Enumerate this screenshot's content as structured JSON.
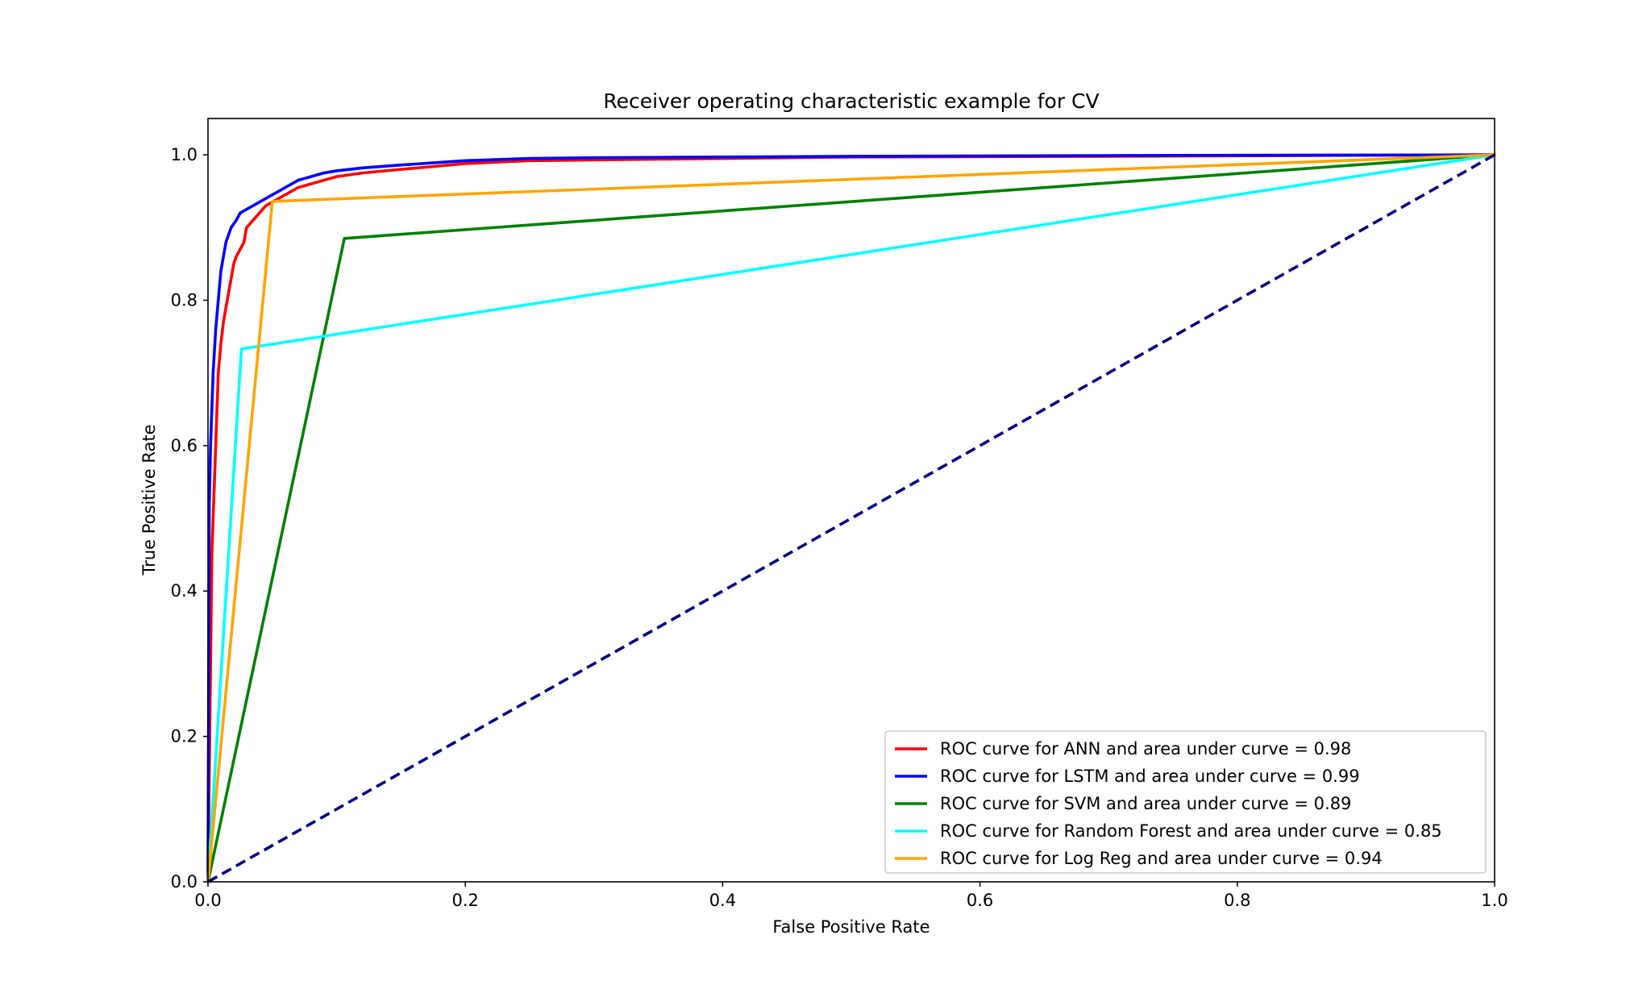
{
  "chart_data": {
    "type": "line",
    "title": "Receiver operating characteristic example for CV",
    "xlabel": "False Positive Rate",
    "ylabel": "True Positive Rate",
    "xlim": [
      0.0,
      1.0
    ],
    "ylim": [
      0.0,
      1.05
    ],
    "xticks": [
      "0.0",
      "0.2",
      "0.4",
      "0.6",
      "0.8",
      "1.0"
    ],
    "yticks": [
      "0.0",
      "0.2",
      "0.4",
      "0.6",
      "0.8",
      "1.0"
    ],
    "grid": false,
    "legend_position": "lower right",
    "series": [
      {
        "name": "ROC curve for ANN and area under curve = 0.98",
        "color": "#ff0000",
        "x": [
          0.0,
          0.003,
          0.006,
          0.008,
          0.01,
          0.012,
          0.015,
          0.018,
          0.02,
          0.022,
          0.025,
          0.028,
          0.03,
          0.035,
          0.04,
          0.045,
          0.05,
          0.06,
          0.07,
          0.08,
          0.09,
          0.1,
          0.12,
          0.15,
          0.2,
          0.25,
          0.3,
          0.4,
          0.5,
          0.7,
          1.0
        ],
        "y": [
          0.0,
          0.45,
          0.6,
          0.7,
          0.74,
          0.77,
          0.8,
          0.83,
          0.85,
          0.86,
          0.87,
          0.88,
          0.9,
          0.91,
          0.92,
          0.93,
          0.935,
          0.945,
          0.955,
          0.96,
          0.965,
          0.97,
          0.975,
          0.98,
          0.988,
          0.992,
          0.993,
          0.995,
          0.997,
          0.998,
          1.0
        ]
      },
      {
        "name": "ROC curve for LSTM and area under curve = 0.99",
        "color": "#0000ff",
        "x": [
          0.0,
          0.001,
          0.002,
          0.004,
          0.006,
          0.008,
          0.01,
          0.012,
          0.014,
          0.016,
          0.018,
          0.02,
          0.022,
          0.025,
          0.03,
          0.04,
          0.05,
          0.06,
          0.07,
          0.08,
          0.09,
          0.1,
          0.12,
          0.15,
          0.2,
          0.25,
          0.3,
          0.4,
          0.5,
          0.7,
          1.0
        ],
        "y": [
          0.0,
          0.52,
          0.6,
          0.7,
          0.76,
          0.8,
          0.84,
          0.86,
          0.88,
          0.89,
          0.9,
          0.905,
          0.91,
          0.92,
          0.925,
          0.935,
          0.945,
          0.955,
          0.965,
          0.97,
          0.975,
          0.978,
          0.982,
          0.986,
          0.992,
          0.995,
          0.996,
          0.997,
          0.998,
          0.999,
          1.0
        ]
      },
      {
        "name": "ROC curve for SVM and area under curve = 0.89",
        "color": "#008000",
        "x": [
          0.0,
          0.106,
          1.0
        ],
        "y": [
          0.0,
          0.885,
          1.0
        ]
      },
      {
        "name": "ROC curve for Random Forest and area under curve = 0.85",
        "color": "#00ffff",
        "x": [
          0.0,
          0.026,
          1.0
        ],
        "y": [
          0.0,
          0.733,
          1.0
        ]
      },
      {
        "name": "ROC curve for Log Reg and area under curve = 0.94",
        "color": "#ffa500",
        "x": [
          0.0,
          0.05,
          1.0
        ],
        "y": [
          0.0,
          0.936,
          1.0
        ]
      },
      {
        "color": "#000080",
        "dashed": true,
        "x": [
          0.0,
          1.0
        ],
        "y": [
          0.0,
          1.0
        ]
      }
    ]
  }
}
